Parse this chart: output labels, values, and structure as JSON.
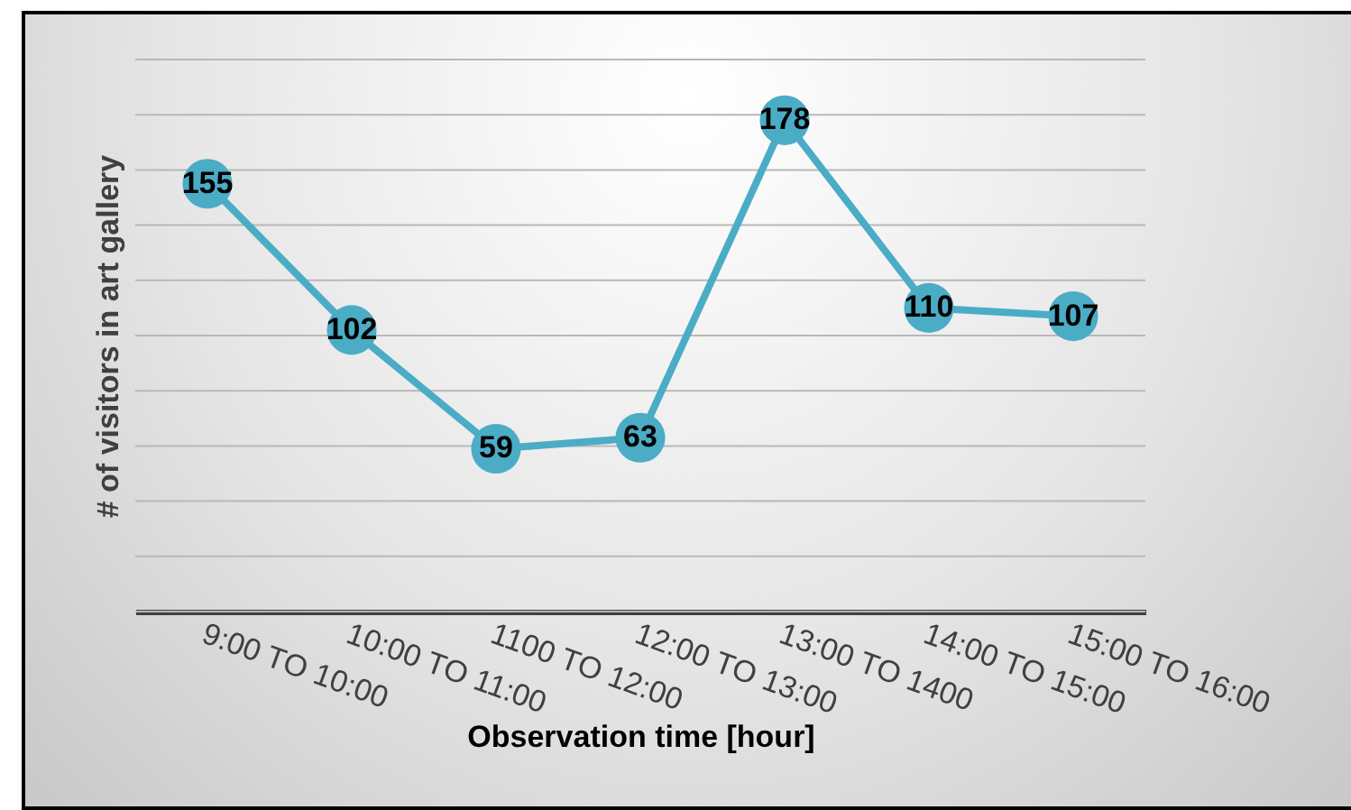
{
  "chart_data": {
    "type": "line",
    "xlabel": "Observation time [hour]",
    "ylabel": "# of visitors in art gallery",
    "categories": [
      "9:00 TO 10:00",
      "10:00 TO 11:00",
      "1100 TO 12:00",
      "12:00 TO 13:00",
      "13:00 TO 1400",
      "14:00 TO 15:00",
      "15:00 TO 16:00"
    ],
    "series": [
      {
        "color": "#4bacc6",
        "values": [
          155,
          102,
          59,
          63,
          178,
          110,
          107
        ]
      }
    ],
    "ylim": [
      0,
      200
    ],
    "yticks": [
      {
        "value": 0,
        "label": null
      },
      {
        "value": 20,
        "label": null
      },
      {
        "value": 40,
        "label": null
      },
      {
        "value": 60,
        "label": null
      },
      {
        "value": 80,
        "label": null
      },
      {
        "value": 100,
        "label": null
      },
      {
        "value": 120,
        "label": null
      },
      {
        "value": 140,
        "label": null
      },
      {
        "value": 160,
        "label": null
      },
      {
        "value": 180,
        "label": null
      },
      {
        "value": 200,
        "label": null
      }
    ],
    "grid": "y",
    "tick_labels": "x",
    "marker": "circle",
    "line_style": "solid",
    "data_labels": true
  }
}
